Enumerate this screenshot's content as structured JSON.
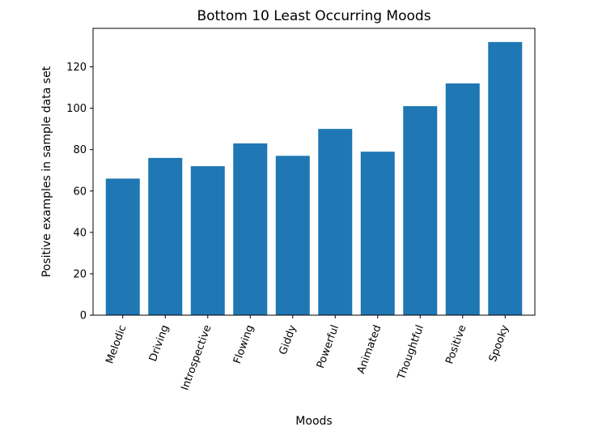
{
  "chart_data": {
    "type": "bar",
    "title": "Bottom 10 Least Occurring Moods",
    "xlabel": "Moods",
    "ylabel": "Positive examples in sample data set",
    "categories": [
      "Melodic",
      "Driving",
      "Introspective",
      "Flowing",
      "Giddy",
      "Powerful",
      "Animated",
      "Thoughtful",
      "Positive",
      "Spooky"
    ],
    "values": [
      66,
      76,
      72,
      83,
      77,
      90,
      79,
      101,
      112,
      132
    ],
    "ylim": [
      0,
      138.6
    ],
    "yticks": [
      0,
      20,
      40,
      60,
      80,
      100,
      120
    ],
    "bar_color": "#1f77b4",
    "grid": false,
    "x_tick_rotation": "70 degrees"
  }
}
